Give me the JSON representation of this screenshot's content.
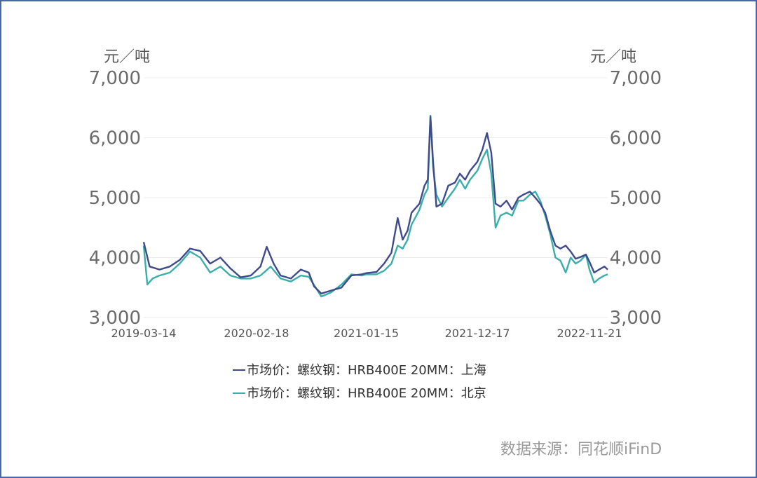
{
  "chart_data": {
    "type": "line",
    "title": "",
    "ylabel_left": "元／吨",
    "ylabel_right": "元／吨",
    "ylim": [
      3000,
      7000
    ],
    "yticks": [
      "3,000",
      "4,000",
      "5,000",
      "6,000",
      "7,000"
    ],
    "ytick_values": [
      3000,
      4000,
      5000,
      6000,
      7000
    ],
    "xticks": [
      "2019-03-14",
      "2020-02-18",
      "2021-01-15",
      "2021-12-17",
      "2022-11-21"
    ],
    "xtick_dates": [
      "2019-03-14",
      "2020-02-18",
      "2021-01-15",
      "2021-12-17",
      "2022-11-21"
    ],
    "x_range": [
      "2019-03-14",
      "2023-01-15"
    ],
    "grid": "horizontal",
    "legend_position": "bottom-center",
    "series": [
      {
        "name": "市场价：螺纹钢：HRB400E 20MM：上海",
        "color": "#3f4a8c",
        "points": [
          [
            "2019-03-14",
            4260
          ],
          [
            "2019-04-01",
            3850
          ],
          [
            "2019-05-01",
            3800
          ],
          [
            "2019-06-01",
            3850
          ],
          [
            "2019-07-01",
            3960
          ],
          [
            "2019-08-01",
            4150
          ],
          [
            "2019-09-01",
            4110
          ],
          [
            "2019-10-01",
            3900
          ],
          [
            "2019-11-01",
            4000
          ],
          [
            "2019-12-01",
            3820
          ],
          [
            "2020-01-01",
            3670
          ],
          [
            "2020-02-01",
            3700
          ],
          [
            "2020-03-01",
            3850
          ],
          [
            "2020-03-20",
            4180
          ],
          [
            "2020-04-10",
            3900
          ],
          [
            "2020-05-01",
            3700
          ],
          [
            "2020-06-01",
            3650
          ],
          [
            "2020-07-01",
            3800
          ],
          [
            "2020-07-25",
            3750
          ],
          [
            "2020-08-10",
            3520
          ],
          [
            "2020-09-01",
            3400
          ],
          [
            "2020-10-01",
            3450
          ],
          [
            "2020-11-01",
            3500
          ],
          [
            "2020-12-01",
            3700
          ],
          [
            "2021-01-01",
            3720
          ],
          [
            "2021-01-15",
            3740
          ],
          [
            "2021-02-15",
            3760
          ],
          [
            "2021-03-10",
            3900
          ],
          [
            "2021-04-01",
            4080
          ],
          [
            "2021-04-20",
            4660
          ],
          [
            "2021-05-05",
            4300
          ],
          [
            "2021-05-20",
            4450
          ],
          [
            "2021-06-01",
            4750
          ],
          [
            "2021-06-25",
            4900
          ],
          [
            "2021-07-10",
            5200
          ],
          [
            "2021-07-20",
            5300
          ],
          [
            "2021-07-28",
            6350
          ],
          [
            "2021-08-05",
            5600
          ],
          [
            "2021-08-15",
            4850
          ],
          [
            "2021-09-01",
            4900
          ],
          [
            "2021-09-20",
            5200
          ],
          [
            "2021-10-10",
            5250
          ],
          [
            "2021-10-25",
            5400
          ],
          [
            "2021-11-10",
            5300
          ],
          [
            "2021-11-25",
            5450
          ],
          [
            "2021-12-17",
            5600
          ],
          [
            "2022-01-01",
            5800
          ],
          [
            "2022-01-15",
            6080
          ],
          [
            "2022-01-28",
            5750
          ],
          [
            "2022-02-10",
            4900
          ],
          [
            "2022-02-25",
            4850
          ],
          [
            "2022-03-15",
            4950
          ],
          [
            "2022-04-01",
            4800
          ],
          [
            "2022-04-20",
            5000
          ],
          [
            "2022-05-05",
            5050
          ],
          [
            "2022-05-25",
            5100
          ],
          [
            "2022-06-10",
            5000
          ],
          [
            "2022-06-25",
            4900
          ],
          [
            "2022-07-10",
            4750
          ],
          [
            "2022-07-25",
            4450
          ],
          [
            "2022-08-10",
            4200
          ],
          [
            "2022-08-25",
            4150
          ],
          [
            "2022-09-10",
            4200
          ],
          [
            "2022-09-25",
            4100
          ],
          [
            "2022-10-10",
            3980
          ],
          [
            "2022-10-25",
            4010
          ],
          [
            "2022-11-10",
            4050
          ],
          [
            "2022-11-21",
            3930
          ],
          [
            "2022-12-05",
            3750
          ],
          [
            "2022-12-20",
            3800
          ],
          [
            "2023-01-05",
            3850
          ],
          [
            "2023-01-15",
            3800
          ]
        ]
      },
      {
        "name": "市场价：螺纹钢：HRB400E 20MM：北京",
        "color": "#3aafa9",
        "points": [
          [
            "2019-03-14",
            4200
          ],
          [
            "2019-03-25",
            3550
          ],
          [
            "2019-04-10",
            3650
          ],
          [
            "2019-05-01",
            3700
          ],
          [
            "2019-06-01",
            3750
          ],
          [
            "2019-07-01",
            3900
          ],
          [
            "2019-08-01",
            4100
          ],
          [
            "2019-09-01",
            4000
          ],
          [
            "2019-10-01",
            3750
          ],
          [
            "2019-11-01",
            3850
          ],
          [
            "2019-12-01",
            3700
          ],
          [
            "2020-01-01",
            3650
          ],
          [
            "2020-02-01",
            3650
          ],
          [
            "2020-03-01",
            3700
          ],
          [
            "2020-04-01",
            3850
          ],
          [
            "2020-05-01",
            3650
          ],
          [
            "2020-06-01",
            3600
          ],
          [
            "2020-07-01",
            3700
          ],
          [
            "2020-07-25",
            3680
          ],
          [
            "2020-08-15",
            3500
          ],
          [
            "2020-09-01",
            3350
          ],
          [
            "2020-10-01",
            3420
          ],
          [
            "2020-11-01",
            3550
          ],
          [
            "2020-12-01",
            3720
          ],
          [
            "2021-01-01",
            3700
          ],
          [
            "2021-01-15",
            3720
          ],
          [
            "2021-02-15",
            3720
          ],
          [
            "2021-03-10",
            3780
          ],
          [
            "2021-04-01",
            3900
          ],
          [
            "2021-04-20",
            4200
          ],
          [
            "2021-05-05",
            4150
          ],
          [
            "2021-05-20",
            4300
          ],
          [
            "2021-06-01",
            4550
          ],
          [
            "2021-06-25",
            4800
          ],
          [
            "2021-07-10",
            5050
          ],
          [
            "2021-07-20",
            5150
          ],
          [
            "2021-07-28",
            6370
          ],
          [
            "2021-08-05",
            5500
          ],
          [
            "2021-08-15",
            5050
          ],
          [
            "2021-09-01",
            4850
          ],
          [
            "2021-09-20",
            5000
          ],
          [
            "2021-10-10",
            5150
          ],
          [
            "2021-10-25",
            5300
          ],
          [
            "2021-11-10",
            5150
          ],
          [
            "2021-11-25",
            5300
          ],
          [
            "2021-12-17",
            5450
          ],
          [
            "2022-01-01",
            5650
          ],
          [
            "2022-01-15",
            5800
          ],
          [
            "2022-01-28",
            5400
          ],
          [
            "2022-02-10",
            4500
          ],
          [
            "2022-02-25",
            4700
          ],
          [
            "2022-03-15",
            4750
          ],
          [
            "2022-04-01",
            4700
          ],
          [
            "2022-04-20",
            4950
          ],
          [
            "2022-05-05",
            4950
          ],
          [
            "2022-05-25",
            5050
          ],
          [
            "2022-06-10",
            5100
          ],
          [
            "2022-06-25",
            4950
          ],
          [
            "2022-07-10",
            4700
          ],
          [
            "2022-07-25",
            4400
          ],
          [
            "2022-08-10",
            4000
          ],
          [
            "2022-08-25",
            3950
          ],
          [
            "2022-09-10",
            3750
          ],
          [
            "2022-09-25",
            4000
          ],
          [
            "2022-10-10",
            3900
          ],
          [
            "2022-10-25",
            3950
          ],
          [
            "2022-11-10",
            4050
          ],
          [
            "2022-11-21",
            3800
          ],
          [
            "2022-12-05",
            3580
          ],
          [
            "2022-12-20",
            3650
          ],
          [
            "2023-01-05",
            3700
          ],
          [
            "2023-01-15",
            3720
          ]
        ]
      }
    ]
  },
  "source_text": "数据来源：同花顺iFinD"
}
